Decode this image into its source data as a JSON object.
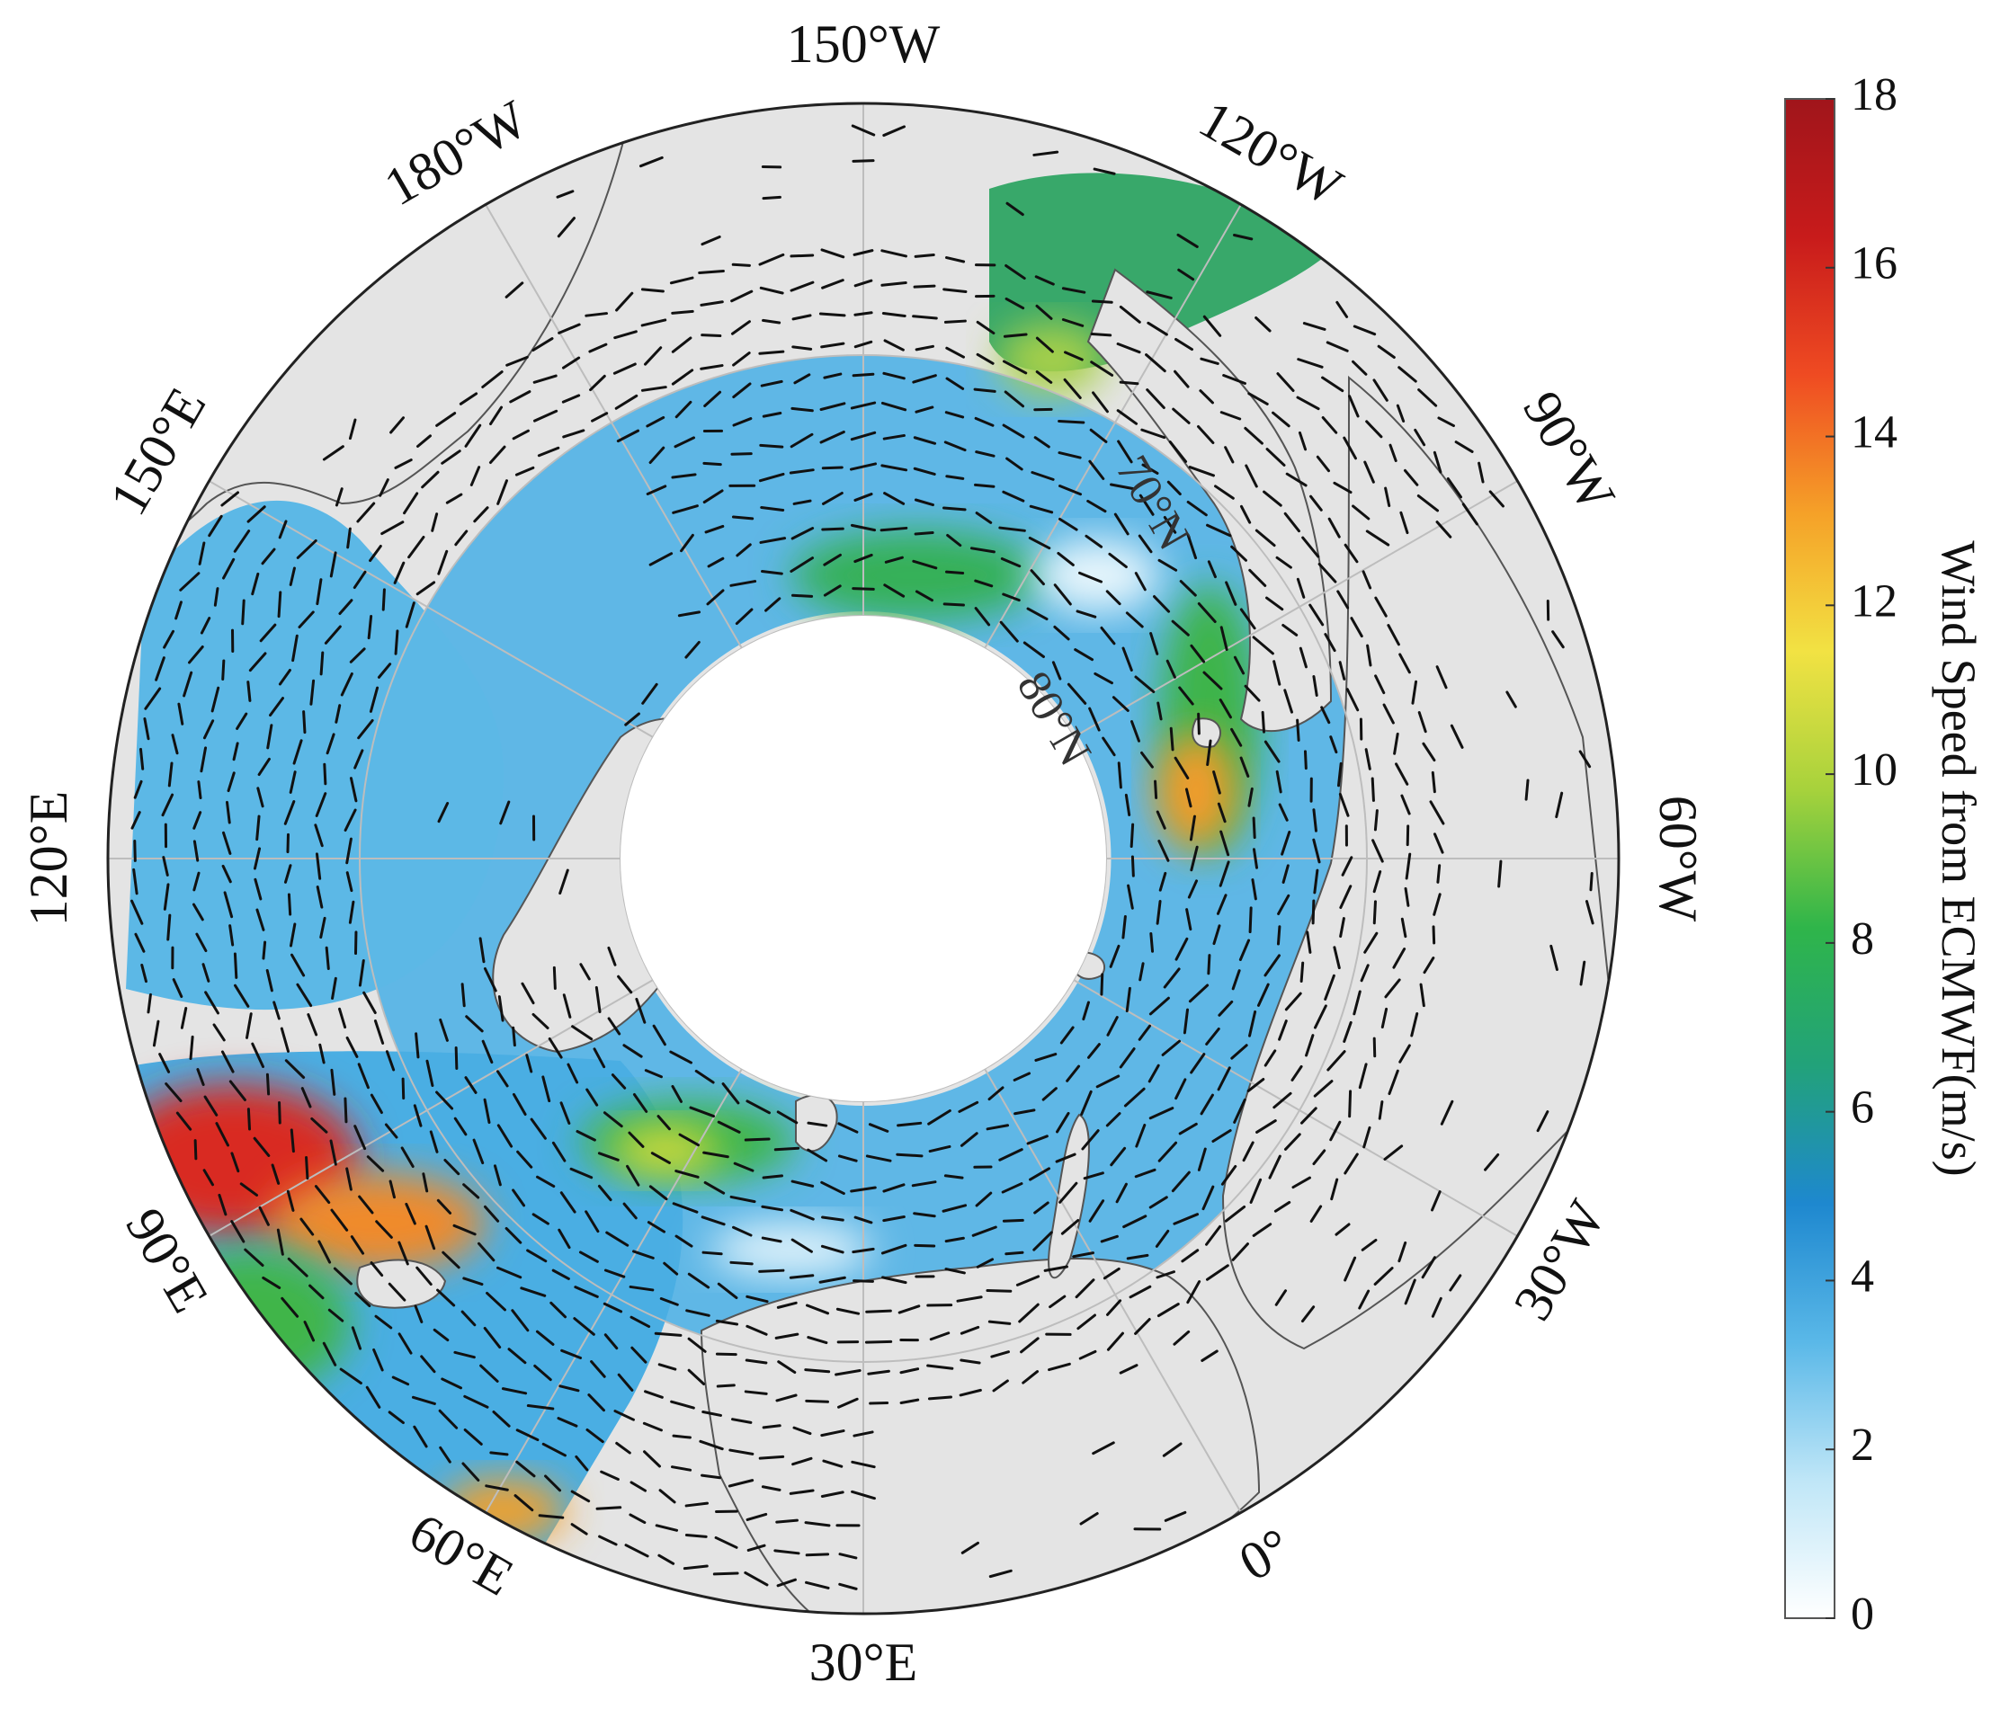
{
  "map": {
    "projection": "north polar stereographic",
    "longitude_labels": [
      {
        "lon": -150,
        "text": "150°W"
      },
      {
        "lon": -120,
        "text": "120°W"
      },
      {
        "lon": -90,
        "text": "90°W"
      },
      {
        "lon": -60,
        "text": "60°W"
      },
      {
        "lon": -30,
        "text": "30°W"
      },
      {
        "lon": 0,
        "text": "0°"
      },
      {
        "lon": 30,
        "text": "30°E"
      },
      {
        "lon": 60,
        "text": "60°E"
      },
      {
        "lon": 90,
        "text": "90°E"
      },
      {
        "lon": 120,
        "text": "120°E"
      },
      {
        "lon": 150,
        "text": "150°E"
      },
      {
        "lon": 180,
        "text": "180°W"
      }
    ],
    "latitude_labels": [
      {
        "lat": 70,
        "text": "70°N"
      },
      {
        "lat": 80,
        "text": "80°N"
      }
    ],
    "colors": {
      "land": "#e4e4e4",
      "ocean_mask_inner": "#ffffff",
      "graticule": "#bdbdbd",
      "vectors": "#111111"
    }
  },
  "colorbar": {
    "title": "Wind Speed from ECMWF(m/s)",
    "min": 0,
    "max": 18,
    "ticks": [
      "0",
      "2",
      "4",
      "6",
      "8",
      "10",
      "12",
      "14",
      "16",
      "18"
    ],
    "colors": [
      "#ffffff",
      "#bfe6f7",
      "#5ab8e8",
      "#1e88cf",
      "#22a27a",
      "#2fb54a",
      "#a7d23c",
      "#f2e243",
      "#f5a128",
      "#ef4b22",
      "#c81b1b",
      "#a0151b"
    ]
  }
}
